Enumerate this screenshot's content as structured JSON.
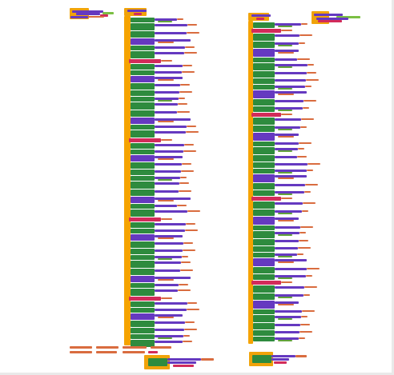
{
  "workspace": {
    "colors": {
      "control": "#f5a300",
      "event": "#f0a30a",
      "component": "#6539c0",
      "setter": "#2e8b3e",
      "text": "#d96c3f",
      "math": "#3667c9",
      "logic": "#62a23a",
      "procedure": "#d22b5a",
      "value": "#7bbf43",
      "background": "#ffffff"
    },
    "stacks": [
      {
        "name": "small-event-top-left",
        "rows": 4
      },
      {
        "name": "main-event-stack-1",
        "rows": 92
      },
      {
        "name": "main-event-stack-2",
        "rows": 92
      },
      {
        "name": "small-event-top-right",
        "rows": 3
      },
      {
        "name": "bottom-left-blocks",
        "rows": 4
      },
      {
        "name": "bottom-right-blocks",
        "rows": 3
      }
    ]
  }
}
